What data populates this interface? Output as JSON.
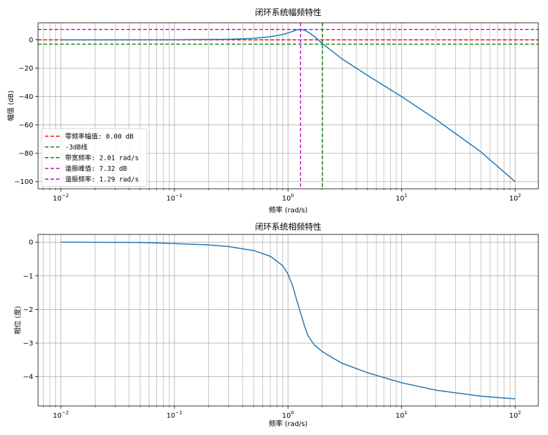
{
  "chart_data": [
    {
      "type": "line",
      "title": "闭环系统幅频特性",
      "xlabel": "频率 (rad/s)",
      "ylabel": "幅值 (dB)",
      "xscale": "log",
      "xlim": [
        0.0063,
        160
      ],
      "ylim": [
        -105,
        12
      ],
      "grid": "both (major + minor)",
      "legend_position": "lower-left",
      "x_ticks": [
        {
          "value": 0.01,
          "label": "10^-2"
        },
        {
          "value": 0.1,
          "label": "10^-1"
        },
        {
          "value": 1,
          "label": "10^0"
        },
        {
          "value": 10,
          "label": "10^1"
        },
        {
          "value": 100,
          "label": "10^2"
        }
      ],
      "y_ticks": [
        {
          "value": 0,
          "label": "0"
        },
        {
          "value": -20,
          "label": "−20"
        },
        {
          "value": -40,
          "label": "−40"
        },
        {
          "value": -60,
          "label": "−60"
        },
        {
          "value": -80,
          "label": "−80"
        },
        {
          "value": -100,
          "label": "−100"
        }
      ],
      "series": [
        {
          "color": "#1f77b4",
          "x": [
            0.01,
            0.1,
            0.3,
            0.5,
            0.7,
            0.9,
            1.0,
            1.1,
            1.2,
            1.29,
            1.4,
            1.5,
            1.7,
            2.0,
            2.5,
            3,
            5,
            10,
            20,
            50,
            100
          ],
          "y": [
            0.0,
            0.05,
            0.4,
            1.1,
            2.2,
            3.8,
            4.8,
            6.0,
            7.0,
            7.32,
            6.8,
            5.5,
            2.5,
            -2.5,
            -8.5,
            -13.5,
            -25,
            -40,
            -56,
            -79,
            -100
          ]
        }
      ],
      "reference_lines": [
        {
          "orientation": "horizontal",
          "value": 0.0,
          "color": "#ff0000",
          "label": "零频率幅值: 0.00 dB"
        },
        {
          "orientation": "horizontal",
          "value": -3,
          "color": "#008000",
          "label": "-3dB线"
        },
        {
          "orientation": "vertical",
          "value": 2.01,
          "color": "#008000",
          "label": "带宽频率: 2.01 rad/s"
        },
        {
          "orientation": "horizontal",
          "value": 7.32,
          "color": "#bf00bf",
          "label": "谐振峰值: 7.32 dB"
        },
        {
          "orientation": "vertical",
          "value": 1.29,
          "color": "#bf00bf",
          "label": "谐振频率: 1.29 rad/s"
        }
      ]
    },
    {
      "type": "line",
      "title": "闭环系统相频特性",
      "xlabel": "频率 (rad/s)",
      "ylabel": "相位 (度)",
      "xscale": "log",
      "xlim": [
        0.0063,
        160
      ],
      "ylim": [
        -4.87,
        0.23
      ],
      "grid": "both (major + minor)",
      "x_ticks": [
        {
          "value": 0.01,
          "label": "10^-2"
        },
        {
          "value": 0.1,
          "label": "10^-1"
        },
        {
          "value": 1,
          "label": "10^0"
        },
        {
          "value": 10,
          "label": "10^1"
        },
        {
          "value": 100,
          "label": "10^2"
        }
      ],
      "y_ticks": [
        {
          "value": 0,
          "label": "0"
        },
        {
          "value": -1,
          "label": "−1"
        },
        {
          "value": -2,
          "label": "−2"
        },
        {
          "value": -3,
          "label": "−3"
        },
        {
          "value": -4,
          "label": "−4"
        }
      ],
      "series": [
        {
          "color": "#1f77b4",
          "x": [
            0.01,
            0.05,
            0.1,
            0.2,
            0.3,
            0.5,
            0.7,
            0.9,
            1.0,
            1.1,
            1.2,
            1.29,
            1.4,
            1.5,
            1.7,
            2.0,
            2.5,
            3,
            5,
            10,
            20,
            50,
            100
          ],
          "y": [
            0.0,
            -0.01,
            -0.04,
            -0.08,
            -0.13,
            -0.25,
            -0.42,
            -0.7,
            -0.95,
            -1.3,
            -1.75,
            -2.1,
            -2.5,
            -2.78,
            -3.05,
            -3.25,
            -3.45,
            -3.6,
            -3.88,
            -4.18,
            -4.4,
            -4.58,
            -4.66
          ]
        }
      ]
    }
  ]
}
